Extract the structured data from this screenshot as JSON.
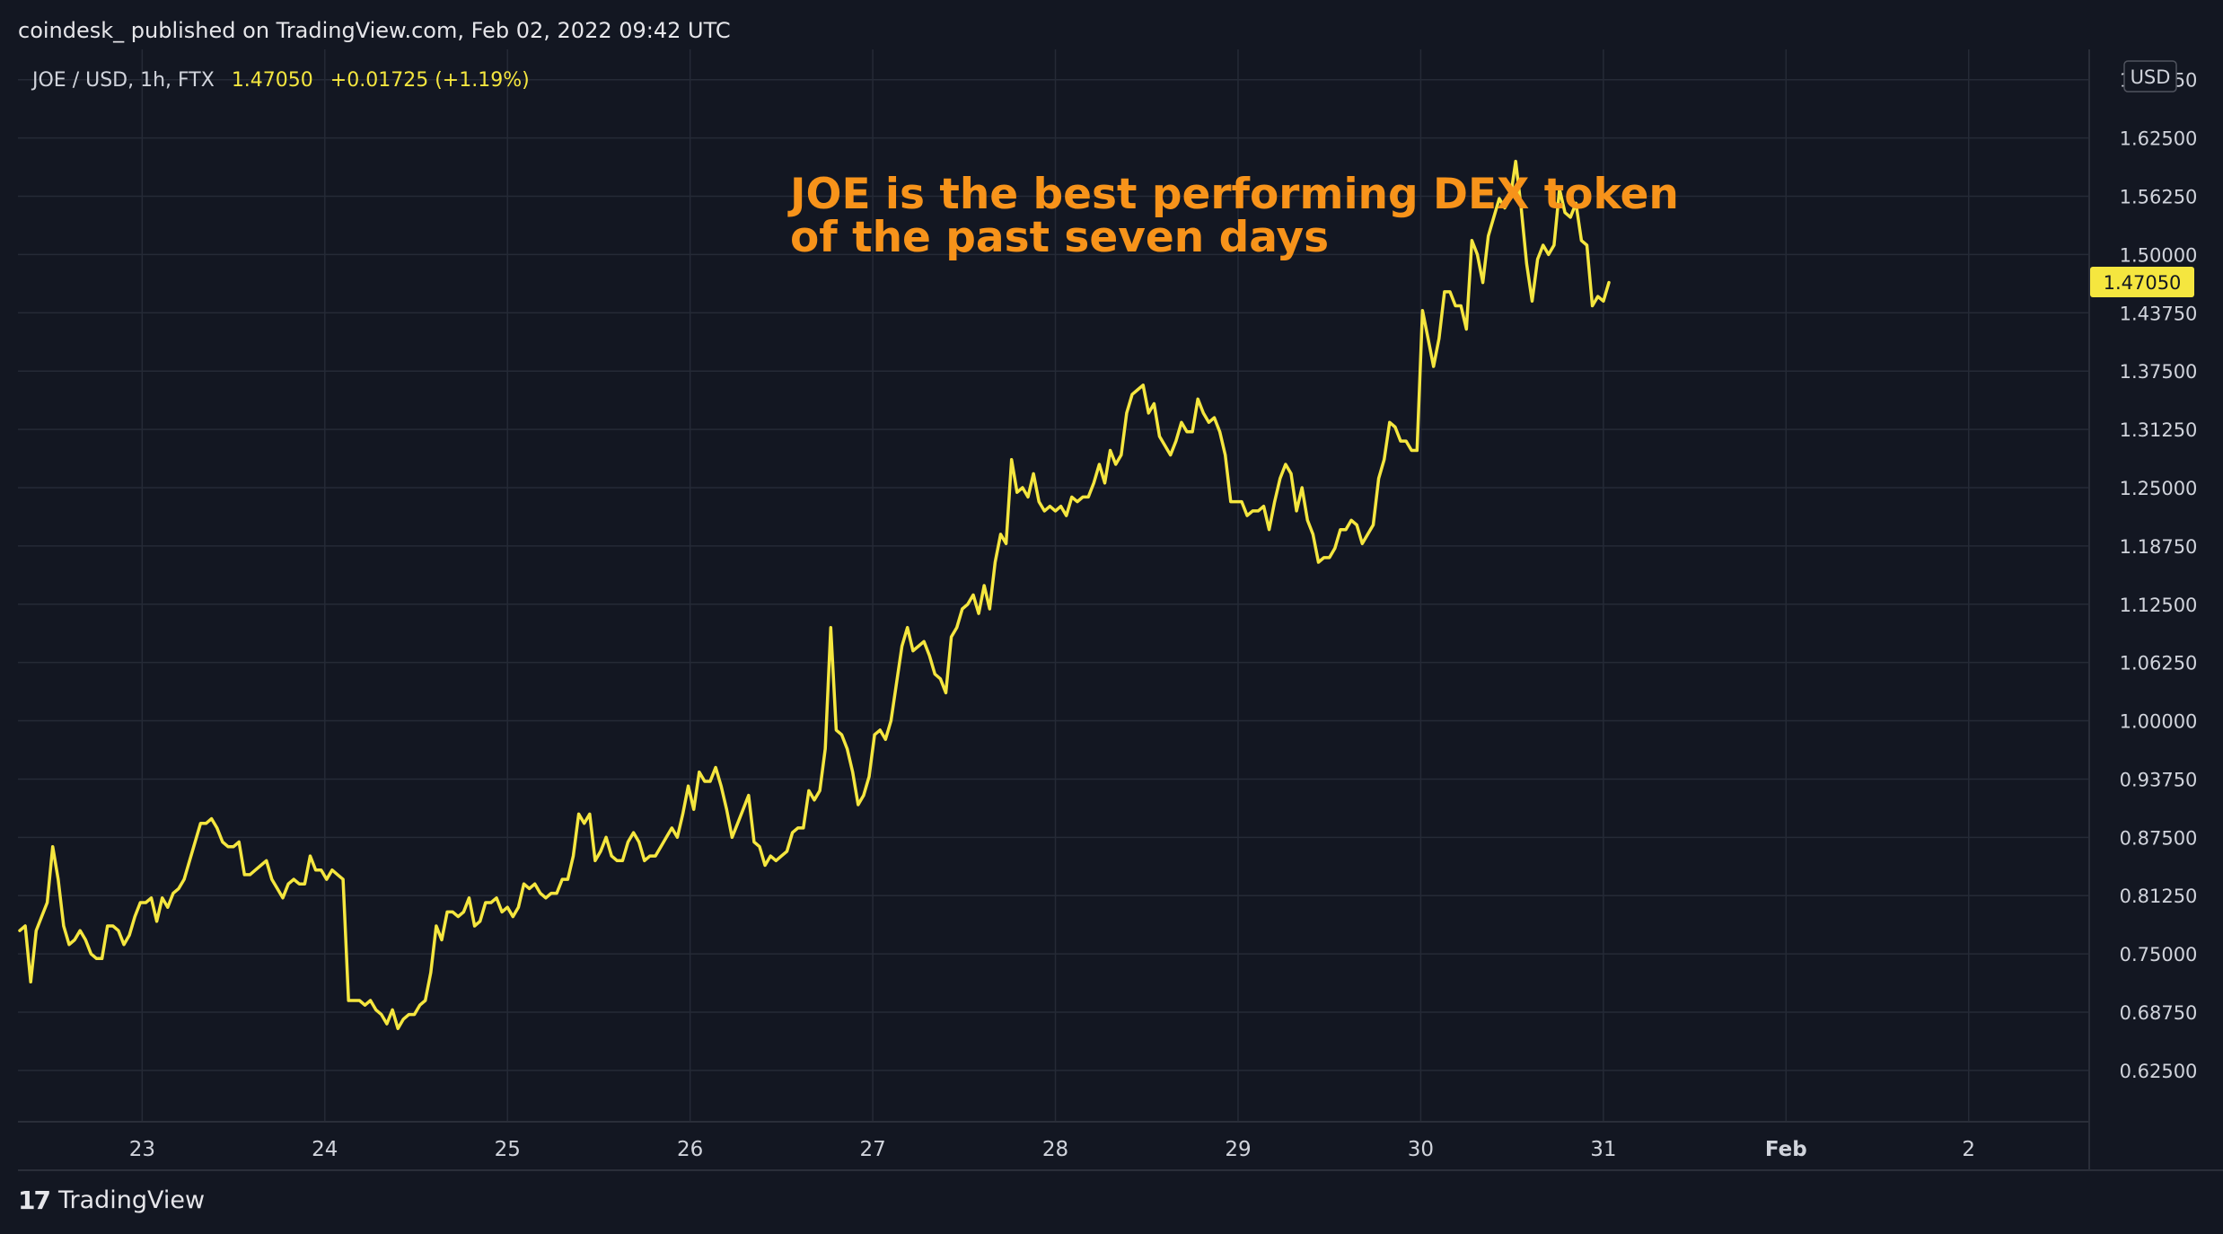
{
  "header": {
    "published_text": "coindesk_ published on TradingView.com, Feb 02, 2022 09:42 UTC"
  },
  "footer": {
    "brand_mark": "17",
    "brand_name": "TradingView"
  },
  "colors": {
    "background": "#131722",
    "grid": "#252a36",
    "line": "#f5e63f",
    "annotation": "#f7931a",
    "axis_text": "#d1d4dc",
    "label_bg": "#f5e63f",
    "label_text": "#131722"
  },
  "chart_data": {
    "type": "line",
    "symbol_label": {
      "symbol": "JOE / USD, 1h, FTX",
      "last": "1.47050",
      "change": "+0.01725 (+1.19%)"
    },
    "annotation": [
      "JOE is the best performing DEX token",
      "of the past seven days"
    ],
    "currency_label": "USD",
    "last_price_label": "1.47050",
    "ylim": [
      0.57,
      1.72
    ],
    "y_ticks": [
      "0.62500",
      "0.68750",
      "0.75000",
      "0.81250",
      "0.87500",
      "0.93750",
      "1.00000",
      "1.06250",
      "1.12500",
      "1.18750",
      "1.25000",
      "1.31250",
      "1.37500",
      "1.43750",
      "1.50000",
      "1.56250",
      "1.62500",
      "1.68750"
    ],
    "x_ticks": [
      {
        "label": "23",
        "day": 1
      },
      {
        "label": "24",
        "day": 2
      },
      {
        "label": "25",
        "day": 3
      },
      {
        "label": "26",
        "day": 4
      },
      {
        "label": "27",
        "day": 5
      },
      {
        "label": "28",
        "day": 6
      },
      {
        "label": "29",
        "day": 7
      },
      {
        "label": "30",
        "day": 8
      },
      {
        "label": "31",
        "day": 9
      },
      {
        "label": "Feb",
        "day": 10,
        "bold": true
      },
      {
        "label": "2",
        "day": 11
      }
    ],
    "xlim": [
      0.32,
      11.66
    ],
    "grid": true,
    "series": [
      {
        "points": [
          [
            0.33,
            0.775
          ],
          [
            0.36,
            0.78
          ],
          [
            0.39,
            0.72
          ],
          [
            0.42,
            0.775
          ],
          [
            0.45,
            0.79
          ],
          [
            0.48,
            0.805
          ],
          [
            0.51,
            0.865
          ],
          [
            0.54,
            0.83
          ],
          [
            0.57,
            0.78
          ],
          [
            0.6,
            0.76
          ],
          [
            0.63,
            0.765
          ],
          [
            0.66,
            0.775
          ],
          [
            0.69,
            0.765
          ],
          [
            0.72,
            0.75
          ],
          [
            0.75,
            0.745
          ],
          [
            0.78,
            0.745
          ],
          [
            0.81,
            0.78
          ],
          [
            0.84,
            0.78
          ],
          [
            0.87,
            0.775
          ],
          [
            0.9,
            0.76
          ],
          [
            0.93,
            0.77
          ],
          [
            0.96,
            0.79
          ],
          [
            0.99,
            0.805
          ],
          [
            1.02,
            0.805
          ],
          [
            1.05,
            0.81
          ],
          [
            1.08,
            0.785
          ],
          [
            1.11,
            0.81
          ],
          [
            1.14,
            0.8
          ],
          [
            1.17,
            0.815
          ],
          [
            1.2,
            0.82
          ],
          [
            1.23,
            0.83
          ],
          [
            1.26,
            0.85
          ],
          [
            1.29,
            0.87
          ],
          [
            1.32,
            0.89
          ],
          [
            1.35,
            0.89
          ],
          [
            1.38,
            0.895
          ],
          [
            1.41,
            0.885
          ],
          [
            1.44,
            0.87
          ],
          [
            1.47,
            0.865
          ],
          [
            1.5,
            0.865
          ],
          [
            1.53,
            0.87
          ],
          [
            1.56,
            0.835
          ],
          [
            1.59,
            0.835
          ],
          [
            1.62,
            0.84
          ],
          [
            1.65,
            0.845
          ],
          [
            1.68,
            0.85
          ],
          [
            1.71,
            0.83
          ],
          [
            1.74,
            0.82
          ],
          [
            1.77,
            0.81
          ],
          [
            1.8,
            0.825
          ],
          [
            1.83,
            0.83
          ],
          [
            1.86,
            0.825
          ],
          [
            1.89,
            0.825
          ],
          [
            1.92,
            0.855
          ],
          [
            1.95,
            0.84
          ],
          [
            1.98,
            0.84
          ],
          [
            2.01,
            0.83
          ],
          [
            2.04,
            0.84
          ],
          [
            2.07,
            0.835
          ],
          [
            2.1,
            0.83
          ],
          [
            2.13,
            0.7
          ],
          [
            2.16,
            0.7
          ],
          [
            2.19,
            0.7
          ],
          [
            2.22,
            0.695
          ],
          [
            2.25,
            0.7
          ],
          [
            2.28,
            0.69
          ],
          [
            2.31,
            0.685
          ],
          [
            2.34,
            0.675
          ],
          [
            2.37,
            0.69
          ],
          [
            2.4,
            0.67
          ],
          [
            2.43,
            0.68
          ],
          [
            2.46,
            0.685
          ],
          [
            2.49,
            0.685
          ],
          [
            2.52,
            0.695
          ],
          [
            2.55,
            0.7
          ],
          [
            2.58,
            0.73
          ],
          [
            2.61,
            0.78
          ],
          [
            2.64,
            0.765
          ],
          [
            2.67,
            0.795
          ],
          [
            2.7,
            0.795
          ],
          [
            2.73,
            0.79
          ],
          [
            2.76,
            0.795
          ],
          [
            2.79,
            0.81
          ],
          [
            2.82,
            0.78
          ],
          [
            2.85,
            0.785
          ],
          [
            2.88,
            0.805
          ],
          [
            2.91,
            0.805
          ],
          [
            2.94,
            0.81
          ],
          [
            2.97,
            0.795
          ],
          [
            3.0,
            0.8
          ],
          [
            3.03,
            0.79
          ],
          [
            3.06,
            0.8
          ],
          [
            3.09,
            0.825
          ],
          [
            3.12,
            0.82
          ],
          [
            3.15,
            0.825
          ],
          [
            3.18,
            0.815
          ],
          [
            3.21,
            0.81
          ],
          [
            3.24,
            0.815
          ],
          [
            3.27,
            0.815
          ],
          [
            3.3,
            0.83
          ],
          [
            3.33,
            0.83
          ],
          [
            3.36,
            0.855
          ],
          [
            3.39,
            0.9
          ],
          [
            3.42,
            0.89
          ],
          [
            3.45,
            0.9
          ],
          [
            3.48,
            0.85
          ],
          [
            3.51,
            0.86
          ],
          [
            3.54,
            0.875
          ],
          [
            3.57,
            0.855
          ],
          [
            3.6,
            0.85
          ],
          [
            3.63,
            0.85
          ],
          [
            3.66,
            0.87
          ],
          [
            3.69,
            0.88
          ],
          [
            3.72,
            0.87
          ],
          [
            3.75,
            0.85
          ],
          [
            3.78,
            0.855
          ],
          [
            3.81,
            0.855
          ],
          [
            3.84,
            0.865
          ],
          [
            3.87,
            0.875
          ],
          [
            3.9,
            0.885
          ],
          [
            3.93,
            0.875
          ],
          [
            3.96,
            0.9
          ],
          [
            3.99,
            0.93
          ],
          [
            4.02,
            0.905
          ],
          [
            4.05,
            0.945
          ],
          [
            4.08,
            0.935
          ],
          [
            4.11,
            0.935
          ],
          [
            4.14,
            0.95
          ],
          [
            4.17,
            0.93
          ],
          [
            4.2,
            0.905
          ],
          [
            4.23,
            0.875
          ],
          [
            4.26,
            0.89
          ],
          [
            4.29,
            0.905
          ],
          [
            4.32,
            0.92
          ],
          [
            4.35,
            0.87
          ],
          [
            4.38,
            0.865
          ],
          [
            4.41,
            0.845
          ],
          [
            4.44,
            0.855
          ],
          [
            4.47,
            0.85
          ],
          [
            4.5,
            0.855
          ],
          [
            4.53,
            0.86
          ],
          [
            4.56,
            0.88
          ],
          [
            4.59,
            0.885
          ],
          [
            4.62,
            0.885
          ],
          [
            4.65,
            0.925
          ],
          [
            4.68,
            0.915
          ],
          [
            4.71,
            0.925
          ],
          [
            4.74,
            0.97
          ],
          [
            4.77,
            1.1
          ],
          [
            4.8,
            0.99
          ],
          [
            4.83,
            0.985
          ],
          [
            4.86,
            0.97
          ],
          [
            4.89,
            0.945
          ],
          [
            4.92,
            0.91
          ],
          [
            4.95,
            0.92
          ],
          [
            4.98,
            0.94
          ],
          [
            5.01,
            0.985
          ],
          [
            5.04,
            0.99
          ],
          [
            5.07,
            0.98
          ],
          [
            5.1,
            1.0
          ],
          [
            5.13,
            1.04
          ],
          [
            5.16,
            1.08
          ],
          [
            5.19,
            1.1
          ],
          [
            5.22,
            1.075
          ],
          [
            5.25,
            1.08
          ],
          [
            5.28,
            1.085
          ],
          [
            5.31,
            1.07
          ],
          [
            5.34,
            1.05
          ],
          [
            5.37,
            1.045
          ],
          [
            5.4,
            1.03
          ],
          [
            5.43,
            1.09
          ],
          [
            5.46,
            1.1
          ],
          [
            5.49,
            1.12
          ],
          [
            5.52,
            1.125
          ],
          [
            5.55,
            1.135
          ],
          [
            5.58,
            1.115
          ],
          [
            5.61,
            1.145
          ],
          [
            5.64,
            1.12
          ],
          [
            5.67,
            1.17
          ],
          [
            5.7,
            1.2
          ],
          [
            5.73,
            1.19
          ],
          [
            5.76,
            1.28
          ],
          [
            5.79,
            1.245
          ],
          [
            5.82,
            1.25
          ],
          [
            5.85,
            1.24
          ],
          [
            5.88,
            1.265
          ],
          [
            5.91,
            1.235
          ],
          [
            5.94,
            1.225
          ],
          [
            5.97,
            1.23
          ],
          [
            6.0,
            1.225
          ],
          [
            6.03,
            1.23
          ],
          [
            6.06,
            1.22
          ],
          [
            6.09,
            1.24
          ],
          [
            6.12,
            1.235
          ],
          [
            6.15,
            1.24
          ],
          [
            6.18,
            1.24
          ],
          [
            6.21,
            1.255
          ],
          [
            6.24,
            1.275
          ],
          [
            6.27,
            1.255
          ],
          [
            6.3,
            1.29
          ],
          [
            6.33,
            1.275
          ],
          [
            6.36,
            1.285
          ],
          [
            6.39,
            1.33
          ],
          [
            6.42,
            1.35
          ],
          [
            6.45,
            1.355
          ],
          [
            6.48,
            1.36
          ],
          [
            6.51,
            1.33
          ],
          [
            6.54,
            1.34
          ],
          [
            6.57,
            1.305
          ],
          [
            6.6,
            1.295
          ],
          [
            6.63,
            1.285
          ],
          [
            6.66,
            1.3
          ],
          [
            6.69,
            1.32
          ],
          [
            6.72,
            1.31
          ],
          [
            6.75,
            1.31
          ],
          [
            6.78,
            1.345
          ],
          [
            6.81,
            1.33
          ],
          [
            6.84,
            1.32
          ],
          [
            6.87,
            1.325
          ],
          [
            6.9,
            1.31
          ],
          [
            6.93,
            1.285
          ],
          [
            6.96,
            1.235
          ],
          [
            6.99,
            1.235
          ],
          [
            7.02,
            1.235
          ],
          [
            7.05,
            1.22
          ],
          [
            7.08,
            1.225
          ],
          [
            7.11,
            1.225
          ],
          [
            7.14,
            1.23
          ],
          [
            7.17,
            1.205
          ],
          [
            7.2,
            1.235
          ],
          [
            7.23,
            1.26
          ],
          [
            7.26,
            1.275
          ],
          [
            7.29,
            1.265
          ],
          [
            7.32,
            1.225
          ],
          [
            7.35,
            1.25
          ],
          [
            7.38,
            1.215
          ],
          [
            7.41,
            1.2
          ],
          [
            7.44,
            1.17
          ],
          [
            7.47,
            1.175
          ],
          [
            7.5,
            1.175
          ],
          [
            7.53,
            1.185
          ],
          [
            7.56,
            1.205
          ],
          [
            7.59,
            1.205
          ],
          [
            7.62,
            1.215
          ],
          [
            7.65,
            1.21
          ],
          [
            7.68,
            1.19
          ],
          [
            7.71,
            1.2
          ],
          [
            7.74,
            1.21
          ],
          [
            7.77,
            1.26
          ],
          [
            7.8,
            1.28
          ],
          [
            7.83,
            1.32
          ],
          [
            7.86,
            1.315
          ],
          [
            7.89,
            1.3
          ],
          [
            7.92,
            1.3
          ],
          [
            7.95,
            1.29
          ],
          [
            7.98,
            1.29
          ],
          [
            8.01,
            1.44
          ],
          [
            8.04,
            1.41
          ],
          [
            8.07,
            1.38
          ],
          [
            8.1,
            1.41
          ],
          [
            8.13,
            1.46
          ],
          [
            8.16,
            1.46
          ],
          [
            8.19,
            1.445
          ],
          [
            8.22,
            1.445
          ],
          [
            8.25,
            1.42
          ],
          [
            8.28,
            1.515
          ],
          [
            8.31,
            1.5
          ],
          [
            8.34,
            1.47
          ],
          [
            8.37,
            1.52
          ],
          [
            8.4,
            1.54
          ],
          [
            8.43,
            1.56
          ],
          [
            8.46,
            1.55
          ],
          [
            8.49,
            1.56
          ],
          [
            8.52,
            1.6
          ],
          [
            8.55,
            1.55
          ],
          [
            8.58,
            1.49
          ],
          [
            8.61,
            1.45
          ],
          [
            8.64,
            1.495
          ],
          [
            8.67,
            1.51
          ],
          [
            8.7,
            1.5
          ],
          [
            8.73,
            1.51
          ],
          [
            8.76,
            1.57
          ],
          [
            8.79,
            1.545
          ],
          [
            8.82,
            1.54
          ],
          [
            8.85,
            1.555
          ],
          [
            8.88,
            1.515
          ],
          [
            8.91,
            1.51
          ],
          [
            8.94,
            1.445
          ],
          [
            8.97,
            1.455
          ],
          [
            9.0,
            1.45
          ],
          [
            9.03,
            1.47
          ]
        ]
      }
    ]
  }
}
